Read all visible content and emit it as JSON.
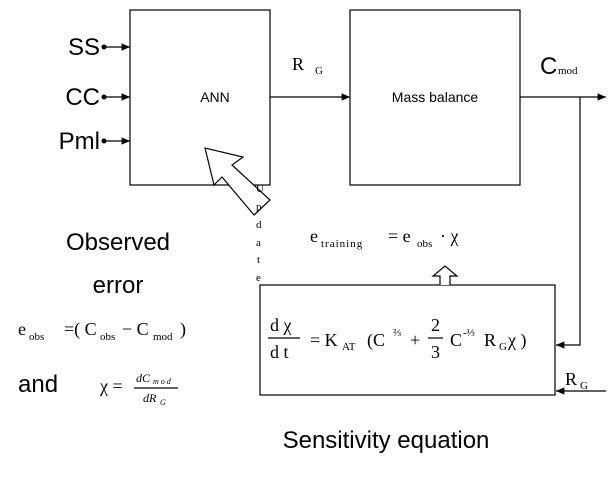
{
  "inputs": [
    "SS",
    "CC",
    "Pml"
  ],
  "ann": "ANN",
  "mass_balance": "Mass balance",
  "rg_top": {
    "main": "R",
    "sub": "G"
  },
  "cmod": {
    "main": "C",
    "sub": "mod"
  },
  "update": [
    "U",
    "p",
    "d",
    "a",
    "t",
    "e"
  ],
  "training_eq": {
    "e": "e",
    "training": "training",
    "eq": "= e",
    "obs": "obs",
    "chi": "· χ"
  },
  "observed_error": [
    "Observed",
    "error"
  ],
  "eobs_eq": {
    "e": "e",
    "obs": "obs",
    "eq": "=( C",
    "obs2": "obs",
    "minus": "− C",
    "mod": "mod",
    "close": ")"
  },
  "and": "and",
  "chi_eq": {
    "lhs": "χ =",
    "num": "dC",
    "num_sub": "m o d",
    "den": "dR",
    "den_sub": "G"
  },
  "sensitivity_eq": {
    "num": "d χ",
    "den": "d t",
    "eq": "= K",
    "at": "AT",
    "open": "(C",
    "exp1": "⅔",
    "plus": "+",
    "fnum": "2",
    "fden": "3",
    "c2": "C",
    "exp2": "-⅓",
    "r": "R",
    "g": "G",
    "close": "χ )"
  },
  "rg_bottom": {
    "main": "R",
    "sub": "G"
  },
  "sensitivity_label": "Sensitivity equation"
}
